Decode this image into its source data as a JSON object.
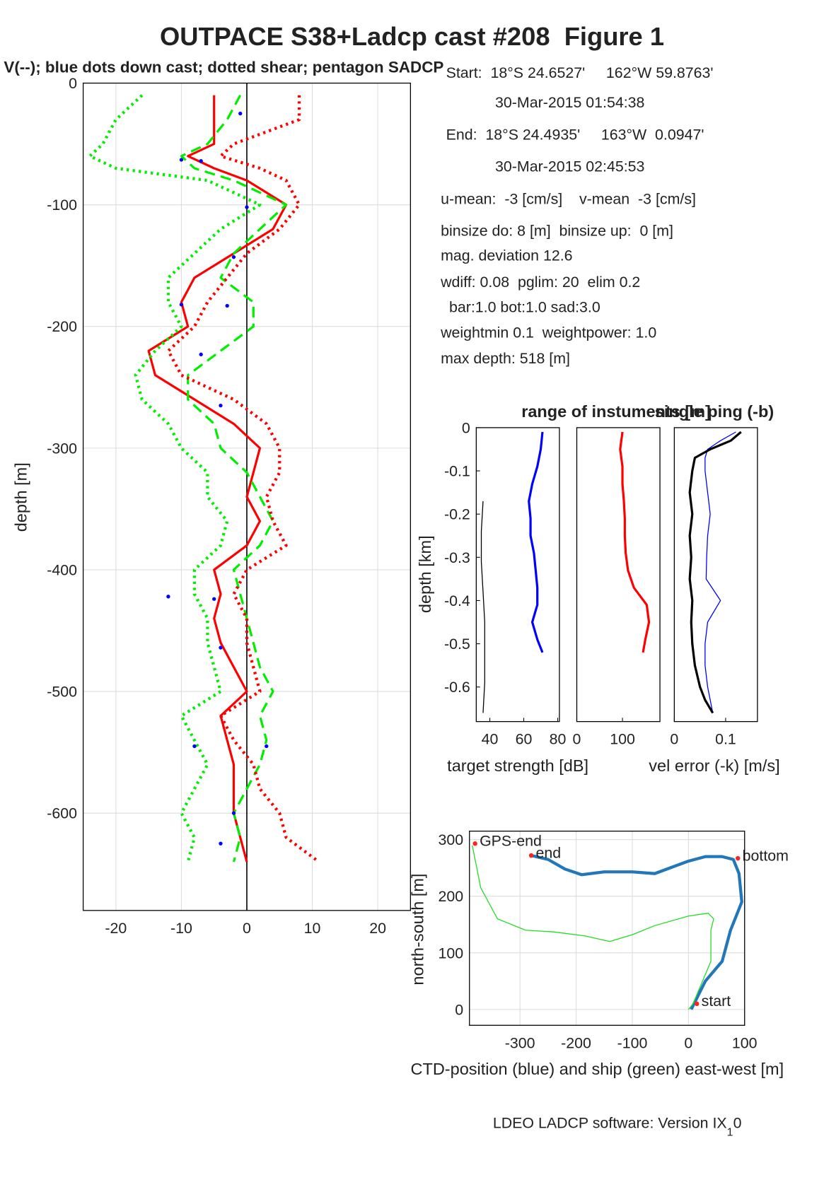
{
  "chart_data": [
    {
      "type": "line",
      "title": "OUTPACE S38+Ladcp cast #208  Figure 1",
      "subtitle": "V(--); blue dots down cast; dotted shear; pentagon SADCP",
      "ylabel": "depth [m]",
      "xlim": [
        -25,
        25
      ],
      "ylim": [
        -680,
        0
      ],
      "xticks": [
        -20,
        -10,
        0,
        10,
        20
      ],
      "yticks": [
        0,
        -100,
        -200,
        -300,
        -400,
        -500,
        -600
      ],
      "grid": true,
      "y": [
        -10,
        -30,
        -50,
        -60,
        -70,
        -80,
        -100,
        -120,
        -140,
        -160,
        -180,
        -200,
        -220,
        -240,
        -260,
        -280,
        -300,
        -320,
        -340,
        -360,
        -380,
        -400,
        -420,
        -440,
        -460,
        -480,
        -500,
        -520,
        -540,
        -560,
        -580,
        -600,
        -620,
        -640
      ],
      "series": [
        {
          "color": "#ff0000",
          "style": "solid",
          "values": [
            -5,
            -5,
            -5,
            -9,
            -5,
            0,
            6,
            4,
            -2,
            -8,
            -10,
            -9,
            -15,
            -14,
            -8,
            -2,
            2,
            1,
            0,
            2,
            0,
            -5,
            -4,
            -5,
            -4,
            -2,
            0,
            -4,
            -3,
            -2,
            -2,
            -2,
            -1,
            0
          ]
        },
        {
          "color": "#00ee00",
          "style": "dashed",
          "values": [
            -1,
            -3,
            -6,
            -10,
            -8,
            -2,
            6,
            2,
            -2,
            -4,
            1,
            1,
            -4,
            -9,
            -9,
            -5,
            -4,
            0,
            2,
            4,
            2,
            -2,
            -1,
            0,
            1,
            2,
            4,
            2,
            3,
            2,
            0,
            -2,
            -1,
            -2
          ]
        },
        {
          "color": "#ff0000",
          "style": "dotted",
          "values": [
            8,
            8,
            -2,
            -4,
            2,
            6,
            8,
            5,
            0,
            -3,
            -6,
            -8,
            -12,
            -10,
            -2,
            3,
            5,
            5,
            3,
            4,
            6,
            0,
            -2,
            0,
            0,
            1,
            2,
            -4,
            -2,
            1,
            2,
            5,
            6,
            11
          ]
        },
        {
          "color": "#00ee00",
          "style": "dotted",
          "values": [
            -16,
            -20,
            -22,
            -24,
            -20,
            -6,
            2,
            -4,
            -8,
            -12,
            -12,
            -10,
            -14,
            -17,
            -16,
            -12,
            -10,
            -6,
            -6,
            -3,
            -4,
            -8,
            -8,
            -6,
            -6,
            -5,
            -4,
            -10,
            -8,
            -6,
            -8,
            -10,
            -8,
            -9
          ]
        }
      ],
      "dots": {
        "color": "#0000ff",
        "x": [
          -1,
          -10,
          -7,
          0,
          -2,
          -10,
          -3,
          -7,
          -4,
          -12,
          -5,
          -4,
          3,
          -8,
          -2,
          -4
        ],
        "y": [
          -25,
          -63,
          -64,
          -102,
          -143,
          -182,
          -183,
          -223,
          -265,
          -422,
          -424,
          -464,
          -545,
          -545,
          -600,
          -625
        ]
      }
    },
    {
      "type": "line",
      "ylabel": "depth [km]",
      "xlabel": "target strength [dB]",
      "xlabel_color": "#0000ff",
      "xlim": [
        32,
        81
      ],
      "ylim": [
        -0.68,
        0
      ],
      "xticks": [
        40,
        60,
        80
      ],
      "yticks": [
        0,
        -0.1,
        -0.2,
        -0.3,
        -0.4,
        -0.5,
        -0.6
      ],
      "grid": false,
      "series": [
        {
          "color": "#0000ff",
          "style": "solid",
          "y": [
            -0.01,
            -0.05,
            -0.09,
            -0.13,
            -0.17,
            -0.21,
            -0.25,
            -0.29,
            -0.33,
            -0.37,
            -0.41,
            -0.45,
            -0.49,
            -0.52
          ],
          "values": [
            71,
            70,
            68,
            65,
            63,
            64,
            64,
            66,
            67,
            68,
            68,
            65,
            68,
            71
          ]
        },
        {
          "color": "#000000",
          "style": "thin",
          "y": [
            -0.17,
            -0.24,
            -0.31,
            -0.38,
            -0.45,
            -0.52,
            -0.59,
            -0.66
          ],
          "values": [
            36,
            35,
            35,
            36,
            37,
            37,
            37,
            36
          ]
        }
      ]
    },
    {
      "type": "line",
      "title": "range of instuments [m]",
      "title_color": "#ff0000",
      "xlim": [
        0,
        182
      ],
      "ylim": [
        -0.68,
        0
      ],
      "xticks": [
        0,
        100
      ],
      "grid": false,
      "series": [
        {
          "color": "#ff0000",
          "style": "solid",
          "y": [
            -0.01,
            -0.05,
            -0.09,
            -0.13,
            -0.17,
            -0.21,
            -0.25,
            -0.29,
            -0.33,
            -0.37,
            -0.41,
            -0.45,
            -0.49,
            -0.52
          ],
          "values": [
            100,
            95,
            100,
            100,
            103,
            105,
            105,
            107,
            112,
            125,
            153,
            158,
            150,
            145
          ]
        }
      ]
    },
    {
      "type": "line",
      "title": "single ping (-b)",
      "title_color": "#0000ff",
      "xlabel": "vel error (-k) [m/s]",
      "xlabel_color": "#000000",
      "xlim": [
        0,
        0.162
      ],
      "ylim": [
        -0.68,
        0
      ],
      "xticks": [
        0,
        0.1
      ],
      "grid": false,
      "series": [
        {
          "color": "#0000ff",
          "style": "thin",
          "y": [
            -0.01,
            -0.03,
            -0.05,
            -0.07,
            -0.1,
            -0.15,
            -0.2,
            -0.25,
            -0.3,
            -0.35,
            -0.4,
            -0.45,
            -0.5,
            -0.55,
            -0.6,
            -0.63,
            -0.66
          ],
          "values": [
            0.12,
            0.09,
            0.065,
            0.06,
            0.06,
            0.065,
            0.07,
            0.065,
            0.063,
            0.062,
            0.09,
            0.065,
            0.06,
            0.06,
            0.065,
            0.07,
            0.075
          ]
        },
        {
          "color": "#000000",
          "style": "solid",
          "y": [
            -0.01,
            -0.03,
            -0.05,
            -0.07,
            -0.1,
            -0.15,
            -0.2,
            -0.25,
            -0.3,
            -0.35,
            -0.4,
            -0.45,
            -0.5,
            -0.55,
            -0.6,
            -0.63,
            -0.66
          ],
          "values": [
            0.13,
            0.11,
            0.07,
            0.04,
            0.035,
            0.03,
            0.035,
            0.03,
            0.033,
            0.03,
            0.035,
            0.033,
            0.035,
            0.04,
            0.05,
            0.06,
            0.075
          ]
        }
      ]
    },
    {
      "type": "line",
      "xlabel": "CTD-position (blue) and ship (green) east-west [m]",
      "ylabel": "north-south [m]",
      "xlim": [
        -390,
        100
      ],
      "ylim": [
        -28,
        315
      ],
      "xticks": [
        -300,
        -200,
        -100,
        0,
        100
      ],
      "yticks": [
        0,
        100,
        200,
        300
      ],
      "grid": true,
      "series": [
        {
          "color": "#2277bb",
          "style": "thick",
          "x": [
            5,
            10,
            30,
            60,
            75,
            95,
            90,
            80,
            60,
            30,
            0,
            -60,
            -100,
            -150,
            -190,
            -220,
            -250,
            -280
          ],
          "values": [
            0,
            10,
            50,
            85,
            140,
            190,
            240,
            265,
            270,
            270,
            262,
            240,
            243,
            243,
            238,
            248,
            265,
            272
          ]
        },
        {
          "color": "#22dd22",
          "style": "thin",
          "x": [
            0,
            8,
            40,
            40,
            45,
            35,
            0,
            -60,
            -100,
            -140,
            -185,
            -240,
            -290,
            -340,
            -370,
            -385
          ],
          "values": [
            0,
            10,
            85,
            140,
            160,
            170,
            165,
            148,
            132,
            120,
            130,
            137,
            140,
            160,
            215,
            290
          ]
        }
      ],
      "annotations": [
        {
          "text": "GPS-end",
          "x": -380,
          "y": 293
        },
        {
          "text": "end",
          "x": -280,
          "y": 272
        },
        {
          "text": "bottom",
          "x": 88,
          "y": 267
        },
        {
          "text": "start",
          "x": 15,
          "y": 10
        }
      ]
    }
  ],
  "info": [
    "Start:  18°S 24.6527'     162°W 59.8763'",
    "30-Mar-2015 01:54:38",
    "End:  18°S 24.4935'     163°W  0.0947'",
    "30-Mar-2015 02:45:53",
    "u-mean:  -3 [cm/s]    v-mean  -3 [cm/s]",
    "binsize do: 8 [m]  binsize up:  0 [m]",
    "mag. deviation 12.6",
    "wdiff: 0.08  pglim: 20  elim 0.2",
    "  bar:1.0 bot:1.0 sad:3.0",
    "weightmin 0.1  weightpower: 1.0",
    "max depth: 518 [m]"
  ],
  "footer": {
    "text": "LDEO LADCP software: Version IX",
    "sub": "1",
    "end": "0"
  }
}
